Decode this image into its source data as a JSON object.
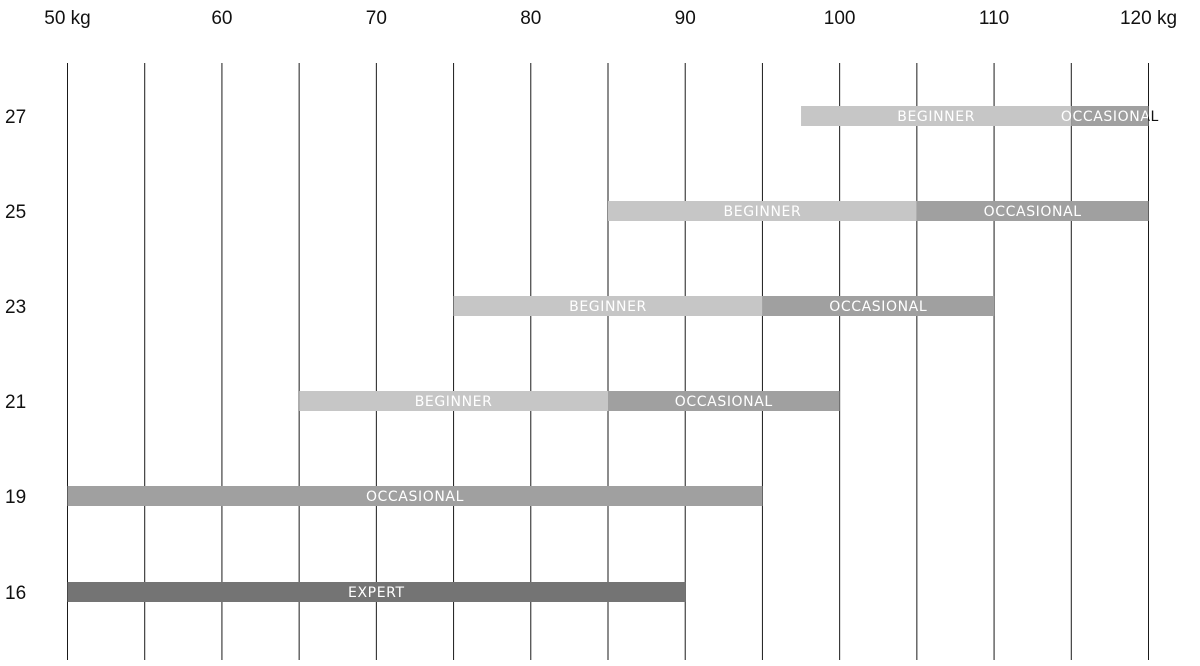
{
  "chart_data": {
    "type": "bar",
    "orientation": "horizontal-range",
    "title": "",
    "xlabel": "",
    "ylabel": "",
    "x_unit": "kg",
    "xlim": [
      50,
      120
    ],
    "x_ticks": [
      50,
      55,
      60,
      65,
      70,
      75,
      80,
      85,
      90,
      95,
      100,
      105,
      110,
      115,
      120
    ],
    "x_tick_labels": [
      {
        "value": 50,
        "label": "50 kg"
      },
      {
        "value": 60,
        "label": "60"
      },
      {
        "value": 70,
        "label": "70"
      },
      {
        "value": 80,
        "label": "80"
      },
      {
        "value": 90,
        "label": "90"
      },
      {
        "value": 100,
        "label": "100"
      },
      {
        "value": 110,
        "label": "110"
      },
      {
        "value": 120,
        "label": "120 kg"
      }
    ],
    "grid": true,
    "categories": [
      "27",
      "25",
      "23",
      "21",
      "19",
      "16"
    ],
    "colors": {
      "BEGINNER": "#c6c6c6",
      "OCCASIONAL": "#a0a0a0",
      "EXPERT": "#747474",
      "grid": "#1a1a1a"
    },
    "rows": [
      {
        "category": "27",
        "segments": [
          {
            "label": "BEGINNER",
            "start": 97.5,
            "end": 115
          },
          {
            "label": "OCCASIONAL",
            "start": 115,
            "end": 120
          }
        ]
      },
      {
        "category": "25",
        "segments": [
          {
            "label": "BEGINNER",
            "start": 85,
            "end": 105
          },
          {
            "label": "OCCASIONAL",
            "start": 105,
            "end": 120
          }
        ]
      },
      {
        "category": "23",
        "segments": [
          {
            "label": "BEGINNER",
            "start": 75,
            "end": 95
          },
          {
            "label": "OCCASIONAL",
            "start": 95,
            "end": 110
          }
        ]
      },
      {
        "category": "21",
        "segments": [
          {
            "label": "BEGINNER",
            "start": 65,
            "end": 85
          },
          {
            "label": "OCCASIONAL",
            "start": 85,
            "end": 100
          }
        ]
      },
      {
        "category": "19",
        "segments": [
          {
            "label": "OCCASIONAL",
            "start": 50,
            "end": 95
          }
        ]
      },
      {
        "category": "16",
        "segments": [
          {
            "label": "EXPERT",
            "start": 50,
            "end": 90
          }
        ]
      }
    ]
  }
}
